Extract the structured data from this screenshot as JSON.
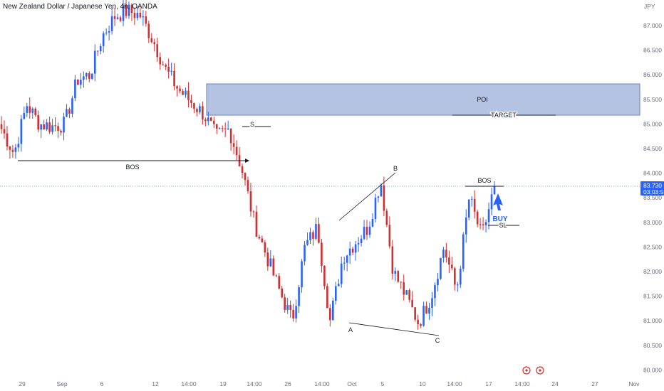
{
  "header": {
    "symbol_title": "New Zealand Dollar / Japanese Yen, 4h, OANDA"
  },
  "axis": {
    "currency": "JPY",
    "y_ticks": [
      "87.000",
      "86.500",
      "86.000",
      "85.500",
      "85.000",
      "84.500",
      "84.000",
      "83.500",
      "83.000",
      "82.500",
      "82.000",
      "81.500",
      "81.000",
      "80.500",
      "80.000"
    ],
    "x_ticks": [
      "29",
      "Sep",
      "6",
      "12",
      "14:00",
      "19",
      "14:00",
      "26",
      "14:00",
      "Oct",
      "5",
      "10",
      "14:00",
      "17",
      "14:00",
      "24",
      "27",
      "Nov"
    ]
  },
  "price_badge": {
    "price": "83.730",
    "countdown": "03:03:51"
  },
  "annotations": {
    "poi": "POI",
    "target": "TARGET",
    "bos_left": "BOS",
    "bos_right": "BOS",
    "s_label": "S",
    "point_a": "A",
    "point_b": "B",
    "point_c": "C",
    "buy": "BUY",
    "sl": "SL"
  },
  "colors": {
    "bull": "#2962ff",
    "bear": "#d32f2f",
    "zone": "#9fb0d9",
    "zone_border": "#6f82b6"
  },
  "chart_data": {
    "type": "candlestick",
    "title": "New Zealand Dollar / Japanese Yen, 4h, OANDA",
    "ylabel": "JPY",
    "ylim": [
      80.0,
      87.3
    ],
    "current_price": 83.73,
    "poi_zone": [
      85.18,
      85.82
    ],
    "target": 85.18,
    "stop_loss": 82.95,
    "bos_levels": [
      84.27,
      83.76
    ],
    "swing_points": {
      "A": 81.0,
      "B": 83.9,
      "C": 80.72
    },
    "price_path": [
      {
        "date": "Aug 28",
        "price": 84.9
      },
      {
        "date": "Aug 29",
        "price": 84.4
      },
      {
        "date": "Aug 30",
        "price": 85.4
      },
      {
        "date": "Aug 31",
        "price": 85.0
      },
      {
        "date": "Sep 1",
        "price": 84.95
      },
      {
        "date": "Sep 4",
        "price": 85.0
      },
      {
        "date": "Sep 5",
        "price": 85.9
      },
      {
        "date": "Sep 6",
        "price": 86.0
      },
      {
        "date": "Sep 7",
        "price": 86.8
      },
      {
        "date": "Sep 8",
        "price": 87.2
      },
      {
        "date": "Sep 11",
        "price": 87.3
      },
      {
        "date": "Sep 12",
        "price": 87.2
      },
      {
        "date": "Sep 13",
        "price": 86.7
      },
      {
        "date": "Sep 14",
        "price": 86.1
      },
      {
        "date": "Sep 15",
        "price": 85.7
      },
      {
        "date": "Sep 18",
        "price": 85.45
      },
      {
        "date": "Sep 19",
        "price": 85.2
      },
      {
        "date": "Sep 20",
        "price": 84.75
      },
      {
        "date": "Sep 21",
        "price": 84.9
      },
      {
        "date": "Sep 22",
        "price": 84.1
      },
      {
        "date": "Sep 25",
        "price": 83.0
      },
      {
        "date": "Sep 26",
        "price": 82.3
      },
      {
        "date": "Sep 27",
        "price": 81.6
      },
      {
        "date": "Sep 28",
        "price": 81.0
      },
      {
        "date": "Sep 29",
        "price": 82.5
      },
      {
        "date": "Oct 2",
        "price": 82.9
      },
      {
        "date": "Oct 3",
        "price": 81.0
      },
      {
        "date": "Oct 4",
        "price": 82.3
      },
      {
        "date": "Oct 5",
        "price": 82.6
      },
      {
        "date": "Oct 6",
        "price": 82.9
      },
      {
        "date": "Oct 9",
        "price": 83.85
      },
      {
        "date": "Oct 10",
        "price": 82.0
      },
      {
        "date": "Oct 11",
        "price": 81.5
      },
      {
        "date": "Oct 12",
        "price": 80.95
      },
      {
        "date": "Oct 13",
        "price": 81.5
      },
      {
        "date": "Oct 16",
        "price": 82.5
      },
      {
        "date": "Oct 17",
        "price": 81.6
      },
      {
        "date": "Oct 18",
        "price": 83.5
      },
      {
        "date": "Oct 19",
        "price": 82.7
      },
      {
        "date": "Oct 20",
        "price": 83.73
      }
    ]
  }
}
